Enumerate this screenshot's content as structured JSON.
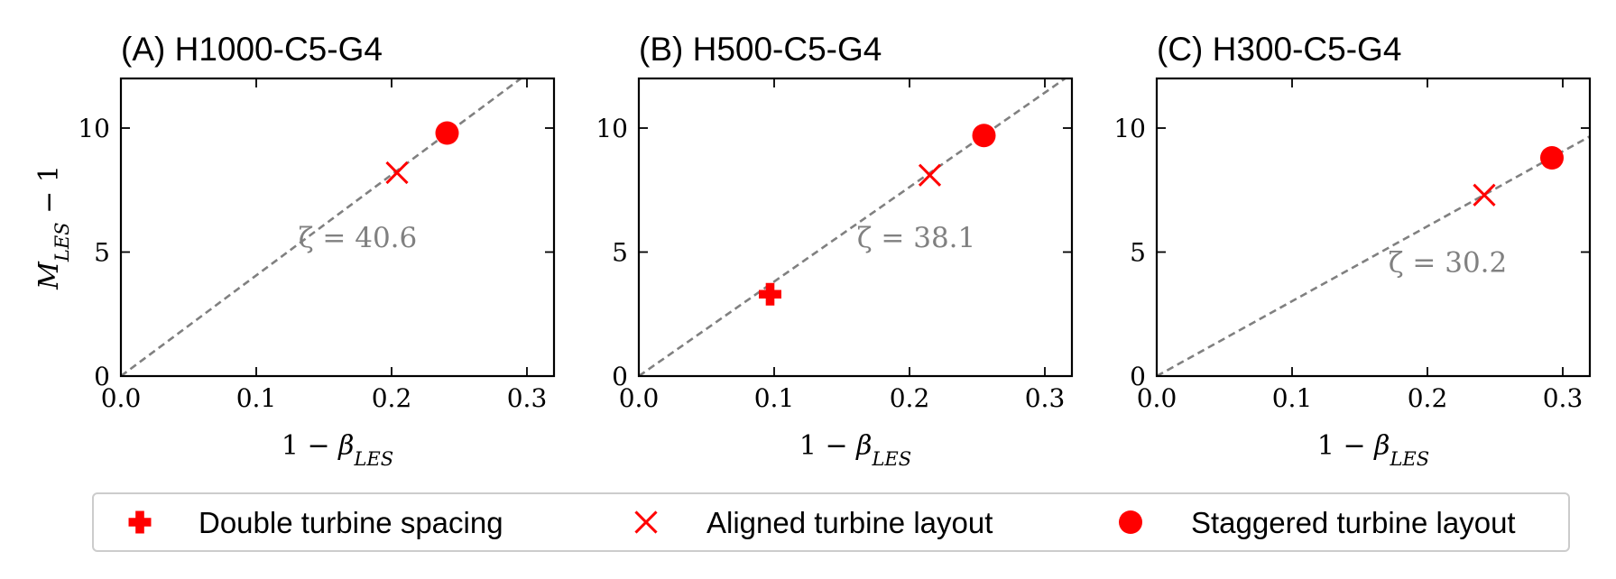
{
  "chart_data": [
    {
      "type": "scatter",
      "title": "(A) H1000-C5-G4",
      "xlabel": "1 − β",
      "xlabel_sub": "LES",
      "ylabel": "M",
      "ylabel_sub": "LES",
      "ylabel_suffix": " − 1",
      "xlim": [
        0.0,
        0.32
      ],
      "ylim": [
        0,
        12
      ],
      "xticks": [
        0.0,
        0.1,
        0.2,
        0.3
      ],
      "xtick_labels": [
        "0.0",
        "0.1",
        "0.2",
        "0.3"
      ],
      "yticks": [
        0,
        5,
        10
      ],
      "ytick_labels": [
        "0",
        "5",
        "10"
      ],
      "fit_line": {
        "slope": 40.6,
        "label": "ζ = 40.6",
        "label_at": [
          0.175,
          5.2
        ]
      },
      "series": [
        {
          "name": "Aligned turbine layout",
          "marker": "x",
          "points": [
            [
              0.204,
              8.2
            ]
          ]
        },
        {
          "name": "Staggered turbine layout",
          "marker": "circle",
          "points": [
            [
              0.241,
              9.8
            ]
          ]
        }
      ]
    },
    {
      "type": "scatter",
      "title": "(B) H500-C5-G4",
      "xlabel": "1 − β",
      "xlabel_sub": "LES",
      "ylabel": "",
      "xlim": [
        0.0,
        0.32
      ],
      "ylim": [
        0,
        12
      ],
      "xticks": [
        0.0,
        0.1,
        0.2,
        0.3
      ],
      "xtick_labels": [
        "0.0",
        "0.1",
        "0.2",
        "0.3"
      ],
      "yticks": [
        0,
        5,
        10
      ],
      "ytick_labels": [
        "0",
        "5",
        "10"
      ],
      "fit_line": {
        "slope": 38.1,
        "label": "ζ = 38.1",
        "label_at": [
          0.205,
          5.2
        ]
      },
      "series": [
        {
          "name": "Double turbine spacing",
          "marker": "plus",
          "points": [
            [
              0.097,
              3.3
            ]
          ]
        },
        {
          "name": "Aligned turbine layout",
          "marker": "x",
          "points": [
            [
              0.215,
              8.1
            ]
          ]
        },
        {
          "name": "Staggered turbine layout",
          "marker": "circle",
          "points": [
            [
              0.255,
              9.7
            ]
          ]
        }
      ]
    },
    {
      "type": "scatter",
      "title": "(C) H300-C5-G4",
      "xlabel": "1 − β",
      "xlabel_sub": "LES",
      "ylabel": "",
      "xlim": [
        0.0,
        0.32
      ],
      "ylim": [
        0,
        12
      ],
      "xticks": [
        0.0,
        0.1,
        0.2,
        0.3
      ],
      "xtick_labels": [
        "0.0",
        "0.1",
        "0.2",
        "0.3"
      ],
      "yticks": [
        0,
        5,
        10
      ],
      "ytick_labels": [
        "0",
        "5",
        "10"
      ],
      "fit_line": {
        "slope": 30.2,
        "label": "ζ = 30.2",
        "label_at": [
          0.215,
          4.2
        ]
      },
      "series": [
        {
          "name": "Aligned turbine layout",
          "marker": "x",
          "points": [
            [
              0.242,
              7.3
            ]
          ]
        },
        {
          "name": "Staggered turbine layout",
          "marker": "circle",
          "points": [
            [
              0.292,
              8.8
            ]
          ]
        }
      ]
    }
  ],
  "legend": {
    "placement": "bottom",
    "entries": [
      {
        "label": "Double turbine spacing",
        "marker": "plus"
      },
      {
        "label": "Aligned turbine layout",
        "marker": "x"
      },
      {
        "label": "Staggered turbine layout",
        "marker": "circle"
      }
    ]
  },
  "colors": {
    "marker": "#ff0000",
    "fit_line": "#808080",
    "annotation": "#808080",
    "axes": "#000000",
    "legend_border": "#cccccc"
  }
}
